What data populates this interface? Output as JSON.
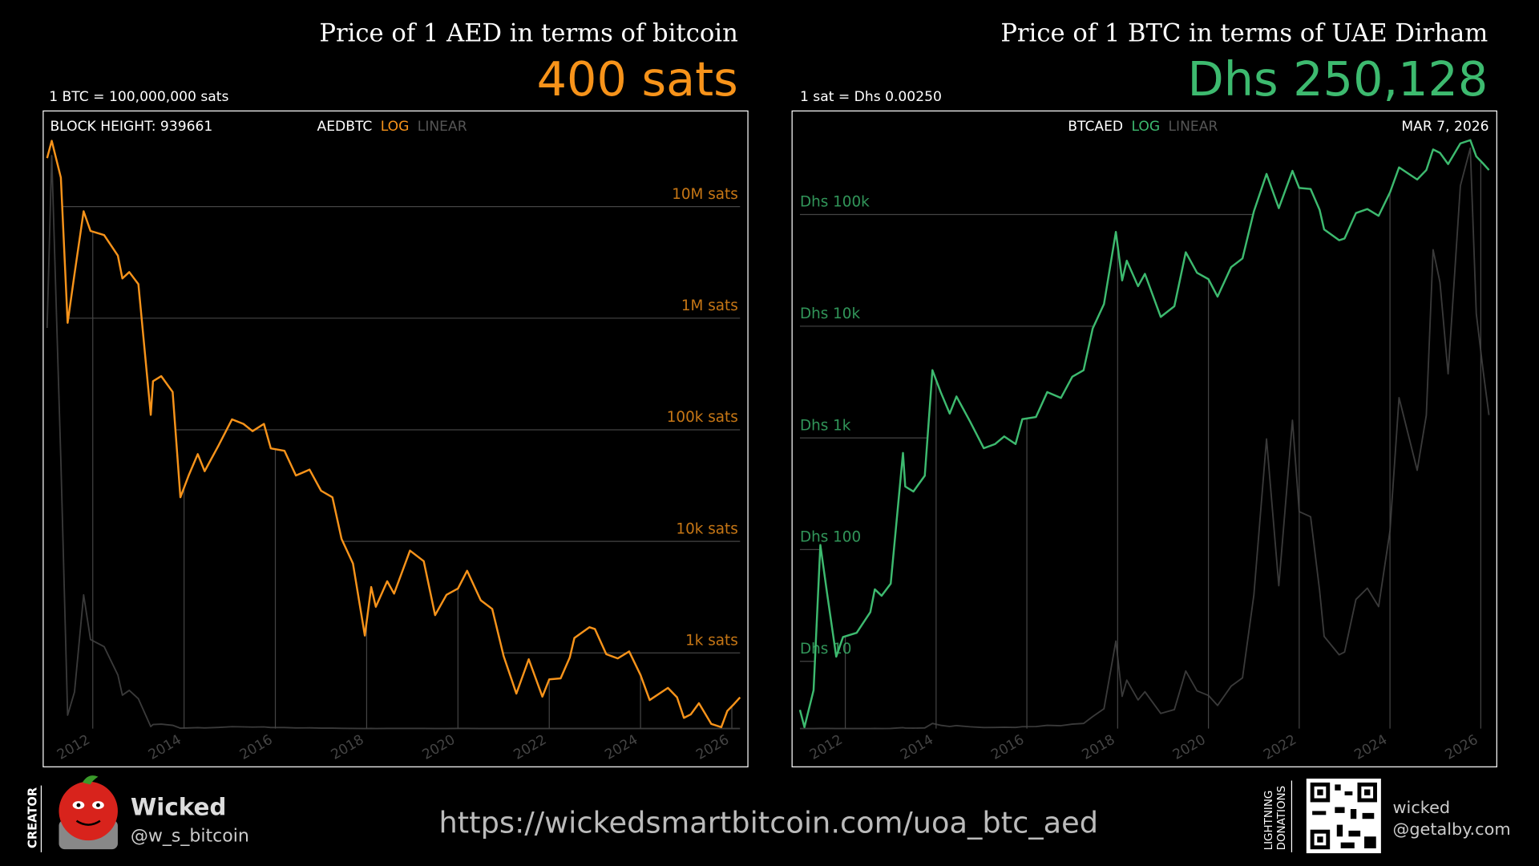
{
  "chart_data": [
    {
      "type": "line",
      "title": "Price of 1 AED in terms of bitcoin",
      "price_label": "400 sats",
      "conversion": "1 BTC = 100,000,000 sats",
      "block_height": "BLOCK HEIGHT: 939661",
      "ticker": "AEDBTC",
      "scale_options": [
        "LOG",
        "LINEAR"
      ],
      "log_scale": true,
      "color": "#f7931a",
      "linear_overlay_color": "#3a3a3a",
      "tick_label_side": "right",
      "x": [
        2011.0,
        2011.1,
        2011.3,
        2011.45,
        2011.6,
        2011.8,
        2011.95,
        2012.25,
        2012.55,
        2012.65,
        2012.8,
        2013.0,
        2013.27,
        2013.32,
        2013.5,
        2013.75,
        2013.92,
        2014.1,
        2014.3,
        2014.45,
        2014.75,
        2015.05,
        2015.3,
        2015.5,
        2015.75,
        2015.9,
        2016.2,
        2016.45,
        2016.75,
        2017.0,
        2017.25,
        2017.45,
        2017.7,
        2017.96,
        2018.1,
        2018.2,
        2018.45,
        2018.6,
        2018.95,
        2019.25,
        2019.5,
        2019.75,
        2020.0,
        2020.2,
        2020.5,
        2020.75,
        2021.0,
        2021.28,
        2021.55,
        2021.85,
        2022.0,
        2022.25,
        2022.45,
        2022.55,
        2022.88,
        2023.0,
        2023.25,
        2023.5,
        2023.75,
        2024.0,
        2024.2,
        2024.6,
        2024.8,
        2024.95,
        2025.1,
        2025.28,
        2025.55,
        2025.77,
        2025.9,
        2026.05,
        2026.18
      ],
      "values": [
        27200000,
        38900000,
        18200000,
        908000,
        2480000,
        9080000,
        6050000,
        5560000,
        3630000,
        2270000,
        2590000,
        2020000,
        136000,
        272000,
        302000,
        218000,
        24800,
        38900,
        60500,
        42500,
        71600,
        124000,
        113000,
        97200,
        113000,
        68100,
        64800,
        38900,
        43900,
        28400,
        24800,
        10500,
        6330,
        1430,
        3890,
        2590,
        4390,
        3400,
        8250,
        6640,
        2180,
        3320,
        3780,
        5450,
        2960,
        2480,
        939,
        432,
        878,
        406,
        579,
        592,
        908,
        1360,
        1700,
        1640,
        973,
        893,
        1030,
        633,
        378,
        486,
        400,
        262,
        281,
        354,
        231,
        216,
        302,
        349,
        400
      ],
      "xlim": [
        2011.0,
        2026.18
      ],
      "xticks": [
        2012,
        2014,
        2016,
        2018,
        2020,
        2022,
        2024,
        2026
      ],
      "ylim": [
        210,
        40000000
      ],
      "yticks": [
        {
          "value": 1000,
          "label": "1k sats"
        },
        {
          "value": 10000,
          "label": "10k sats"
        },
        {
          "value": 100000,
          "label": "100k sats"
        },
        {
          "value": 1000000,
          "label": "1M sats"
        },
        {
          "value": 10000000,
          "label": "10M sats"
        }
      ],
      "y2lim": [
        0,
        40000000
      ]
    },
    {
      "type": "line",
      "title": "Price of 1 BTC in terms of UAE Dirham",
      "price_label": "Dhs 250,128",
      "conversion": "1 sat = Dhs 0.00250",
      "date": "MAR 7, 2026",
      "ticker": "BTCAED",
      "scale_options": [
        "LOG",
        "LINEAR"
      ],
      "log_scale": true,
      "color": "#3dba6f",
      "linear_overlay_color": "#3a3a3a",
      "tick_label_side": "left",
      "x": [
        2011.0,
        2011.1,
        2011.3,
        2011.45,
        2011.6,
        2011.8,
        2011.95,
        2012.25,
        2012.55,
        2012.65,
        2012.8,
        2013.0,
        2013.27,
        2013.32,
        2013.5,
        2013.75,
        2013.92,
        2014.1,
        2014.3,
        2014.45,
        2014.75,
        2015.05,
        2015.3,
        2015.5,
        2015.75,
        2015.9,
        2016.2,
        2016.45,
        2016.75,
        2017.0,
        2017.25,
        2017.45,
        2017.7,
        2017.96,
        2018.1,
        2018.2,
        2018.45,
        2018.6,
        2018.95,
        2019.25,
        2019.5,
        2019.75,
        2020.0,
        2020.2,
        2020.5,
        2020.75,
        2021.0,
        2021.28,
        2021.55,
        2021.85,
        2022.0,
        2022.25,
        2022.45,
        2022.55,
        2022.88,
        2023.0,
        2023.25,
        2023.5,
        2023.75,
        2024.0,
        2024.2,
        2024.6,
        2024.8,
        2024.95,
        2025.1,
        2025.28,
        2025.55,
        2025.77,
        2025.9,
        2026.05,
        2026.18
      ],
      "values": [
        3.67,
        2.57,
        5.51,
        110,
        40.4,
        11.0,
        16.5,
        18.0,
        27.5,
        44.1,
        38.6,
        49.6,
        734,
        367,
        331,
        459,
        4040,
        2570,
        1650,
        2350,
        1400,
        808,
        881,
        1030,
        881,
        1470,
        1540,
        2570,
        2280,
        3530,
        4040,
        9550,
        15800,
        69800,
        25700,
        38600,
        22800,
        29400,
        12100,
        15100,
        45900,
        30100,
        26400,
        18400,
        33800,
        40400,
        106500,
        231000,
        114000,
        246000,
        173000,
        169000,
        110000,
        73500,
        58800,
        61000,
        103000,
        112000,
        97300,
        158000,
        264000,
        206000,
        250000,
        382000,
        356000,
        283000,
        433000,
        463000,
        331000,
        286000,
        250128
      ],
      "xlim": [
        2011.0,
        2026.18
      ],
      "xticks": [
        2012,
        2014,
        2016,
        2018,
        2020,
        2022,
        2024,
        2026
      ],
      "ylim": [
        2.5,
        470000
      ],
      "yticks": [
        {
          "value": 10,
          "label": "Dhs 10"
        },
        {
          "value": 100,
          "label": "Dhs 100"
        },
        {
          "value": 1000,
          "label": "Dhs 1k"
        },
        {
          "value": 10000,
          "label": "Dhs 10k"
        },
        {
          "value": 100000,
          "label": "Dhs 100k"
        }
      ],
      "y2lim": [
        0,
        470000
      ]
    }
  ],
  "footer": {
    "creator_label": "CREATOR",
    "creator_name": "Wicked",
    "creator_handle": "@w_s_bitcoin",
    "url": "https://wickedsmartbitcoin.com/uoa_btc_aed",
    "donation_label": [
      "LIGHTNING",
      "DONATIONS"
    ],
    "lightning_address": [
      "wicked",
      "@getalby.com"
    ]
  }
}
